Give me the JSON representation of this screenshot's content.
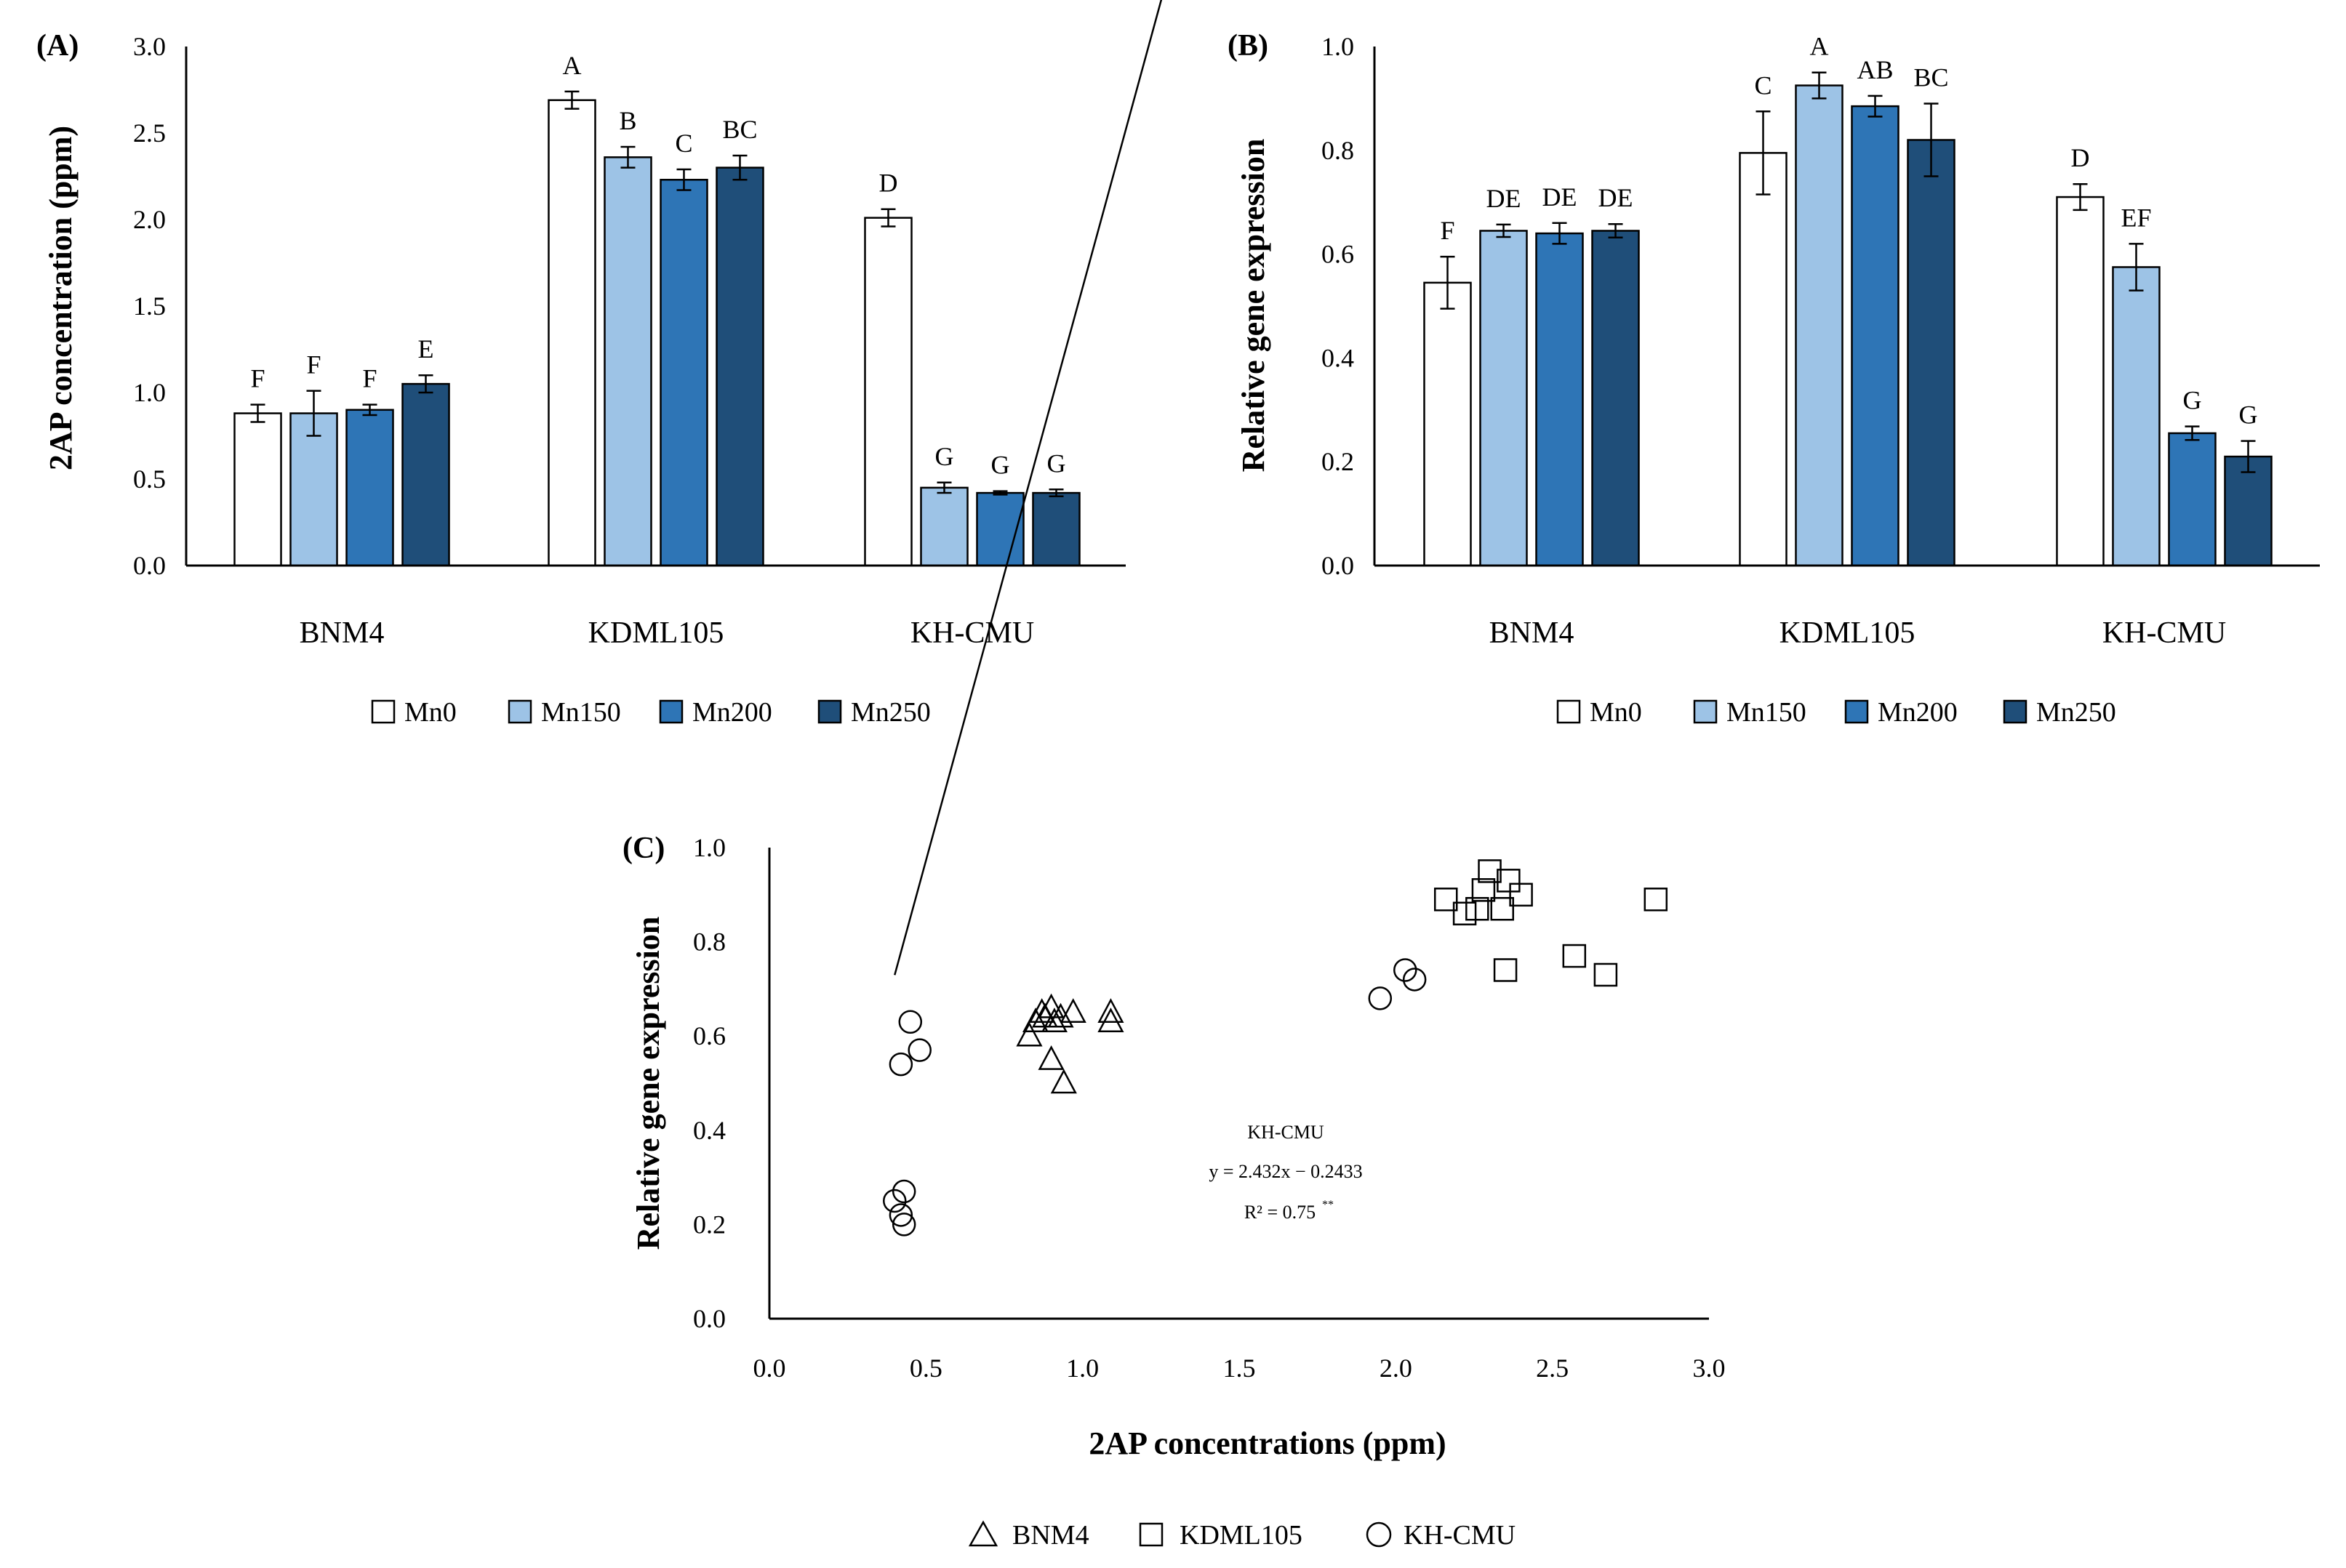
{
  "colors": {
    "Mn0": "#ffffff",
    "Mn150": "#9dc3e6",
    "Mn200": "#2e75b6",
    "Mn250": "#1f4e79",
    "outline": "#000000"
  },
  "chart_data": [
    {
      "panel_label": "(A)",
      "type": "bar",
      "title": "",
      "xlabel": "",
      "ylabel": "2AP concentration (ppm)",
      "ylim": [
        0,
        3.0
      ],
      "yticks": [
        "0.0",
        "0.5",
        "1.0",
        "1.5",
        "2.0",
        "2.5",
        "3.0"
      ],
      "categories": [
        "BNM4",
        "KDML105",
        "KH-CMU"
      ],
      "series": [
        {
          "name": "Mn0",
          "values": [
            0.88,
            2.69,
            2.01
          ],
          "errors": [
            0.05,
            0.05,
            0.05
          ],
          "letters": [
            "F",
            "A",
            "D"
          ]
        },
        {
          "name": "Mn150",
          "values": [
            0.88,
            2.36,
            0.45
          ],
          "errors": [
            0.13,
            0.06,
            0.03
          ],
          "letters": [
            "F",
            "B",
            "G"
          ]
        },
        {
          "name": "Mn200",
          "values": [
            0.9,
            2.23,
            0.42
          ],
          "errors": [
            0.03,
            0.06,
            0.01
          ],
          "letters": [
            "F",
            "C",
            "G"
          ]
        },
        {
          "name": "Mn250",
          "values": [
            1.05,
            2.3,
            0.42
          ],
          "errors": [
            0.05,
            0.07,
            0.02
          ],
          "letters": [
            "E",
            "BC",
            "G"
          ]
        }
      ],
      "legend": [
        "Mn0",
        "Mn150",
        "Mn200",
        "Mn250"
      ]
    },
    {
      "panel_label": "(B)",
      "type": "bar",
      "title": "",
      "xlabel": "",
      "ylabel": "Relative gene expression",
      "ylim": [
        0,
        1.0
      ],
      "yticks": [
        "0.0",
        "0.2",
        "0.4",
        "0.6",
        "0.8",
        "1.0"
      ],
      "categories": [
        "BNM4",
        "KDML105",
        "KH-CMU"
      ],
      "series": [
        {
          "name": "Mn0",
          "values": [
            0.545,
            0.795,
            0.71
          ],
          "errors": [
            0.05,
            0.08,
            0.025
          ],
          "letters": [
            "F",
            "C",
            "D"
          ]
        },
        {
          "name": "Mn150",
          "values": [
            0.645,
            0.925,
            0.575
          ],
          "errors": [
            0.012,
            0.025,
            0.045
          ],
          "letters": [
            "DE",
            "A",
            "EF"
          ]
        },
        {
          "name": "Mn200",
          "values": [
            0.64,
            0.885,
            0.255
          ],
          "errors": [
            0.02,
            0.02,
            0.013
          ],
          "letters": [
            "DE",
            "AB",
            "G"
          ]
        },
        {
          "name": "Mn250",
          "values": [
            0.645,
            0.82,
            0.21
          ],
          "errors": [
            0.013,
            0.07,
            0.03
          ],
          "letters": [
            "DE",
            "BC",
            "G"
          ]
        }
      ],
      "legend": [
        "Mn0",
        "Mn150",
        "Mn200",
        "Mn250"
      ]
    },
    {
      "panel_label": "(C)",
      "type": "scatter",
      "title": "",
      "xlabel": "2AP concentrations (ppm)",
      "ylabel": "Relative gene expression",
      "xlim": [
        0,
        3.0
      ],
      "ylim": [
        0,
        1.0
      ],
      "xticks": [
        "0.0",
        "0.5",
        "1.0",
        "1.5",
        "2.0",
        "2.5",
        "3.0"
      ],
      "yticks": [
        "0.0",
        "0.2",
        "0.4",
        "0.6",
        "0.8",
        "1.0"
      ],
      "series": [
        {
          "name": "BNM4",
          "marker": "triangle",
          "points": [
            [
              0.83,
              0.6
            ],
            [
              0.85,
              0.63
            ],
            [
              0.87,
              0.65
            ],
            [
              0.88,
              0.64
            ],
            [
              0.9,
              0.66
            ],
            [
              0.91,
              0.63
            ],
            [
              0.93,
              0.64
            ],
            [
              0.97,
              0.65
            ],
            [
              1.09,
              0.65
            ],
            [
              1.09,
              0.63
            ],
            [
              0.9,
              0.55
            ],
            [
              0.94,
              0.5
            ]
          ]
        },
        {
          "name": "KDML105",
          "marker": "square",
          "points": [
            [
              2.16,
              0.89
            ],
            [
              2.22,
              0.86
            ],
            [
              2.26,
              0.87
            ],
            [
              2.28,
              0.91
            ],
            [
              2.3,
              0.95
            ],
            [
              2.34,
              0.87
            ],
            [
              2.36,
              0.93
            ],
            [
              2.4,
              0.9
            ],
            [
              2.35,
              0.74
            ],
            [
              2.57,
              0.77
            ],
            [
              2.67,
              0.73
            ],
            [
              2.83,
              0.89
            ]
          ]
        },
        {
          "name": "KH-CMU",
          "marker": "circle",
          "points": [
            [
              0.45,
              0.63
            ],
            [
              0.48,
              0.57
            ],
            [
              0.42,
              0.54
            ],
            [
              1.95,
              0.68
            ],
            [
              2.03,
              0.74
            ],
            [
              2.06,
              0.72
            ],
            [
              0.4,
              0.25
            ],
            [
              0.43,
              0.27
            ],
            [
              0.42,
              0.22
            ],
            [
              0.43,
              0.2
            ]
          ]
        }
      ],
      "trendline": {
        "from_x": 0.4,
        "to_x": 2.0,
        "slope": 2.432,
        "intercept": -0.2433
      },
      "annotation": {
        "label": "KH-CMU",
        "equation": "y = 2.432x − 0.2433",
        "r2_text": "R² = 0.75",
        "r2_sup": "**"
      },
      "legend": [
        "BNM4",
        "KDML105",
        "KH-CMU"
      ]
    }
  ]
}
